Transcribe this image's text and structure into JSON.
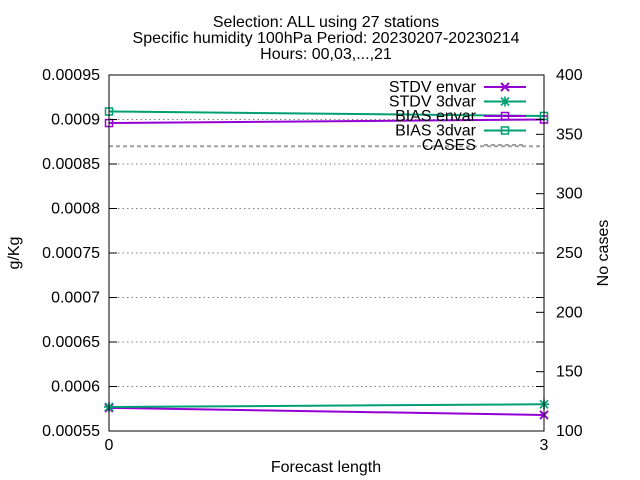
{
  "chart_data": {
    "type": "line",
    "title_lines": [
      "Selection: ALL using    27 stations",
      "Specific humidity 100hPa   Period: 20230207-20230214",
      "Hours: 00,03,...,21"
    ],
    "xlabel": "Forecast length",
    "ylabel": "g/Kg",
    "y2label": "No cases",
    "x": [
      0,
      3
    ],
    "xlim": [
      0,
      3
    ],
    "x_ticks": [
      "0",
      "3"
    ],
    "ylim": [
      0.00055,
      0.00095
    ],
    "y_ticks": [
      "0.00055",
      "0.0006",
      "0.00065",
      "0.0007",
      "0.00075",
      "0.0008",
      "0.00085",
      "0.0009",
      "0.00095"
    ],
    "y2lim": [
      100,
      400
    ],
    "y2_ticks": [
      "100",
      "150",
      "200",
      "250",
      "300",
      "350",
      "400"
    ],
    "grid": true,
    "legend_placement": "top-right",
    "series": [
      {
        "name": "STDV envar",
        "values": [
          0.000576,
          0.000568
        ],
        "axis": "y",
        "color": "#9400d3",
        "marker": "x",
        "dash": false
      },
      {
        "name": "STDV 3dvar",
        "values": [
          0.000577,
          0.00058
        ],
        "axis": "y",
        "color": "#009e73",
        "marker": "star",
        "dash": false
      },
      {
        "name": "BIAS envar",
        "values": [
          0.000896,
          0.0009
        ],
        "axis": "y",
        "color": "#9400d3",
        "marker": "square",
        "dash": false
      },
      {
        "name": "BIAS 3dvar",
        "values": [
          0.000909,
          0.000904
        ],
        "axis": "y",
        "color": "#009e73",
        "marker": "square",
        "dash": false
      },
      {
        "name": "CASES",
        "values": [
          340,
          340
        ],
        "axis": "y2",
        "color": "#a0a0a0",
        "marker": "none",
        "dash": true
      }
    ]
  }
}
